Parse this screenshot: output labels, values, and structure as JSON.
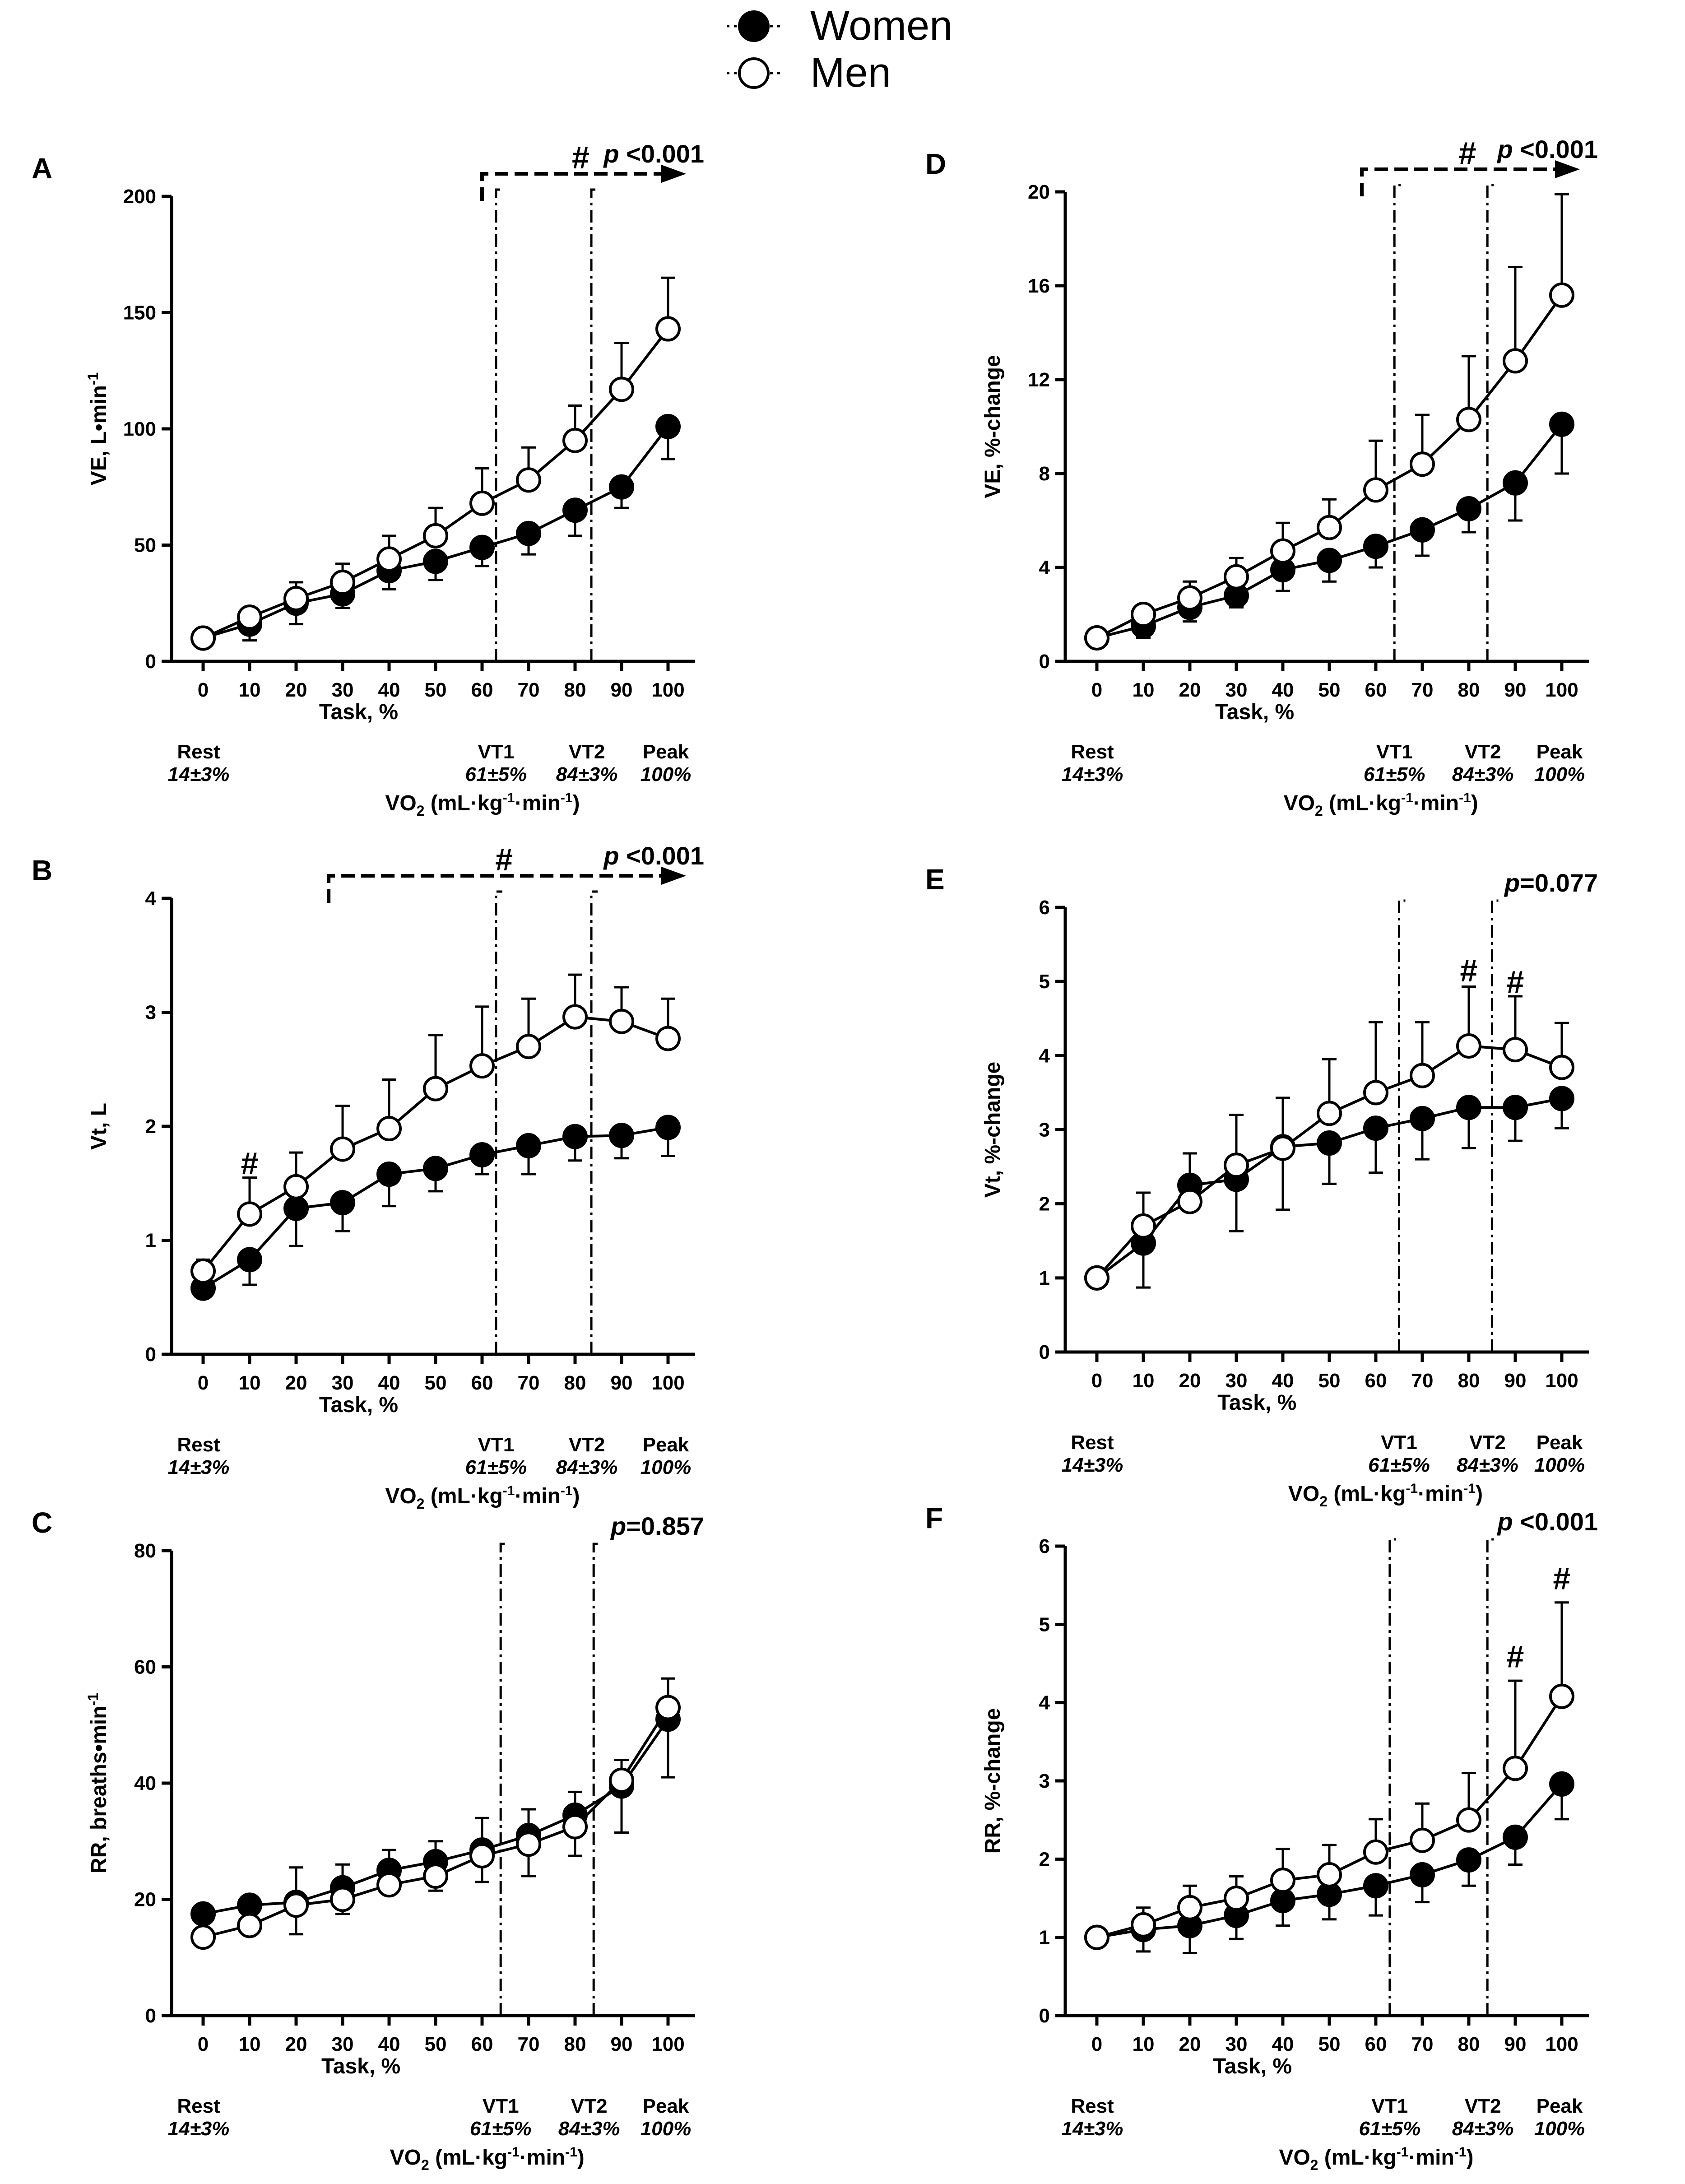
{
  "legend": {
    "women": "Women",
    "men": "Men",
    "women_color": "#000000",
    "men_color": "#ffffff"
  },
  "chart_data": [
    {
      "id": "A",
      "type": "line",
      "panel_label": "A",
      "ylabel": "VE, L•min",
      "ylabel_sup": "-1",
      "xlabel": "Task, %",
      "ylim": [
        0,
        200
      ],
      "yticks": [
        0,
        50,
        100,
        150,
        200
      ],
      "x": [
        0,
        10,
        20,
        30,
        40,
        50,
        60,
        70,
        80,
        90,
        100
      ],
      "series": [
        {
          "name": "Women",
          "values": [
            10,
            16,
            25,
            29,
            39,
            43,
            49,
            55,
            65,
            75,
            101
          ],
          "err": [
            0,
            7,
            9,
            6,
            8,
            8,
            8,
            9,
            11,
            9,
            14
          ]
        },
        {
          "name": "Men",
          "values": [
            10,
            19,
            27,
            34,
            44,
            54,
            68,
            78,
            95,
            117,
            143
          ],
          "err": [
            0,
            3,
            7,
            8,
            10,
            12,
            15,
            14,
            15,
            20,
            22
          ]
        }
      ],
      "thresholds": [
        63,
        83.5
      ],
      "significance": {
        "text": "p <0.001",
        "p": "p",
        "rest": " <0.001",
        "hash": "#",
        "arrow_from": 60
      },
      "hash_marks": [],
      "annotations": {
        "rest": "Rest",
        "rest_val": "14±3%",
        "vt1": "VT1",
        "vt1_val": "61±5%",
        "vt2": "VT2",
        "vt2_val": "84±3%",
        "peak": "Peak",
        "peak_val": "100%",
        "vo2_label": "VO",
        "vo2_sub": "2",
        "vo2_unit": " (mL·kg",
        "vo2_sup1": "-1",
        "vo2_unit2": "·min",
        "vo2_sup2": "-1",
        "vo2_close": ")"
      }
    },
    {
      "id": "B",
      "type": "line",
      "panel_label": "B",
      "ylabel": "Vt, L",
      "ylabel_sup": "",
      "xlabel": "Task, %",
      "ylim": [
        0,
        4
      ],
      "yticks": [
        0,
        1,
        2,
        3,
        4
      ],
      "x": [
        0,
        10,
        20,
        30,
        40,
        50,
        60,
        70,
        80,
        90,
        100
      ],
      "series": [
        {
          "name": "Women",
          "values": [
            0.58,
            0.83,
            1.28,
            1.33,
            1.58,
            1.63,
            1.75,
            1.83,
            1.91,
            1.92,
            1.99
          ],
          "err": [
            0.08,
            0.22,
            0.33,
            0.25,
            0.28,
            0.2,
            0.17,
            0.25,
            0.21,
            0.2,
            0.25
          ]
        },
        {
          "name": "Men",
          "values": [
            0.73,
            1.23,
            1.47,
            1.8,
            1.98,
            2.33,
            2.53,
            2.7,
            2.96,
            2.92,
            2.77
          ],
          "err": [
            0.1,
            0.32,
            0.3,
            0.38,
            0.43,
            0.47,
            0.52,
            0.42,
            0.37,
            0.3,
            0.35
          ]
        }
      ],
      "thresholds": [
        63,
        83.5
      ],
      "significance": {
        "text": "p <0.001",
        "p": "p",
        "rest": " <0.001",
        "hash": "#",
        "arrow_from": 27
      },
      "hash_marks": [
        {
          "x": 10,
          "y": 1.58,
          "text": "#"
        }
      ],
      "annotations": {
        "rest": "Rest",
        "rest_val": "14±3%",
        "vt1": "VT1",
        "vt1_val": "61±5%",
        "vt2": "VT2",
        "vt2_val": "84±3%",
        "peak": "Peak",
        "peak_val": "100%",
        "vo2_label": "VO",
        "vo2_sub": "2",
        "vo2_unit": " (mL·kg",
        "vo2_sup1": "-1",
        "vo2_unit2": "·min",
        "vo2_sup2": "-1",
        "vo2_close": ")"
      }
    },
    {
      "id": "C",
      "type": "line",
      "panel_label": "C",
      "ylabel": "RR, breaths•min",
      "ylabel_sup": "-1",
      "xlabel": "Task, %",
      "ylim": [
        0,
        80
      ],
      "yticks": [
        0,
        20,
        40,
        60,
        80
      ],
      "x": [
        0,
        10,
        20,
        30,
        40,
        50,
        60,
        70,
        80,
        90,
        100
      ],
      "series": [
        {
          "name": "Women",
          "values": [
            17.5,
            19,
            19.5,
            22,
            25,
            26.5,
            28.5,
            31,
            34.5,
            39.5,
            51
          ],
          "err": [
            3,
            5,
            5.5,
            4.5,
            4,
            5,
            5.5,
            7,
            7,
            8,
            10
          ]
        },
        {
          "name": "Men",
          "values": [
            13.5,
            15.5,
            19,
            20,
            22.5,
            24,
            27.5,
            29.5,
            32.5,
            40.5,
            53
          ],
          "err": [
            3.5,
            3.5,
            6.5,
            6,
            6,
            6,
            6.5,
            6,
            6,
            3.5,
            5
          ]
        }
      ],
      "thresholds": [
        64,
        84
      ],
      "significance": {
        "text": "p=0.857",
        "p": "p",
        "rest": "=0.857",
        "hash": "",
        "arrow_from": null
      },
      "hash_marks": [],
      "annotations": {
        "rest": "Rest",
        "rest_val": "14±3%",
        "vt1": "VT1",
        "vt1_val": "61±5%",
        "vt2": "VT2",
        "vt2_val": "84±3%",
        "peak": "Peak",
        "peak_val": "100%",
        "vo2_label": "VO",
        "vo2_sub": "2",
        "vo2_unit": " (mL·kg",
        "vo2_sup1": "-1",
        "vo2_unit2": "·min",
        "vo2_sup2": "-1",
        "vo2_close": ")"
      }
    },
    {
      "id": "D",
      "type": "line",
      "panel_label": "D",
      "ylabel": "VE, %-change",
      "ylabel_sup": "",
      "xlabel": "Task, %",
      "ylim": [
        0,
        20
      ],
      "yticks": [
        0,
        4,
        8,
        12,
        16,
        20
      ],
      "x": [
        0,
        10,
        20,
        30,
        40,
        50,
        60,
        70,
        80,
        90,
        100
      ],
      "series": [
        {
          "name": "Women",
          "values": [
            1,
            1.5,
            2.3,
            2.8,
            3.9,
            4.3,
            4.9,
            5.6,
            6.5,
            7.6,
            10.1
          ],
          "err": [
            0,
            0.5,
            0.6,
            0.5,
            0.9,
            0.9,
            0.9,
            1.1,
            1.0,
            1.6,
            2.1
          ]
        },
        {
          "name": "Men",
          "values": [
            1,
            2.0,
            2.7,
            3.6,
            4.7,
            5.7,
            7.3,
            8.4,
            10.3,
            12.8,
            15.6
          ],
          "err": [
            0,
            0.3,
            0.7,
            0.8,
            1.2,
            1.2,
            2.1,
            2.1,
            2.7,
            4.0,
            4.3
          ]
        }
      ],
      "thresholds": [
        64,
        84
      ],
      "significance": {
        "text": "p <0.001",
        "p": "p",
        "rest": " <0.001",
        "hash": "#",
        "arrow_from": 57
      },
      "hash_marks": [],
      "annotations": {
        "rest": "Rest",
        "rest_val": "14±3%",
        "vt1": "VT1",
        "vt1_val": "61±5%",
        "vt2": "VT2",
        "vt2_val": "84±3%",
        "peak": "Peak",
        "peak_val": "100%",
        "vo2_label": "VO",
        "vo2_sub": "2",
        "vo2_unit": " (mL·kg",
        "vo2_sup1": "-1",
        "vo2_unit2": "·min",
        "vo2_sup2": "-1",
        "vo2_close": ")"
      }
    },
    {
      "id": "E",
      "type": "line",
      "panel_label": "E",
      "ylabel": "Vt, %-change",
      "ylabel_sup": "",
      "xlabel": "Task, %",
      "ylim": [
        0,
        6
      ],
      "yticks": [
        0,
        1,
        2,
        3,
        4,
        5,
        6
      ],
      "x": [
        0,
        10,
        20,
        30,
        40,
        50,
        60,
        70,
        80,
        90,
        100
      ],
      "series": [
        {
          "name": "Women",
          "values": [
            1,
            1.47,
            2.25,
            2.33,
            2.77,
            2.82,
            3.02,
            3.15,
            3.3,
            3.3,
            3.42
          ],
          "err": [
            0,
            0.6,
            0.2,
            0.7,
            0.85,
            0.55,
            0.6,
            0.55,
            0.55,
            0.45,
            0.4
          ]
        },
        {
          "name": "Men",
          "values": [
            1,
            1.7,
            2.03,
            2.52,
            2.75,
            3.22,
            3.5,
            3.73,
            4.13,
            4.08,
            3.84
          ],
          "err": [
            0,
            0.45,
            0.65,
            0.68,
            0.68,
            0.73,
            0.95,
            0.72,
            0.8,
            0.72,
            0.6
          ]
        }
      ],
      "thresholds": [
        65,
        85
      ],
      "significance": {
        "text": "p=0.077",
        "p": "p",
        "rest": "=0.077",
        "hash": "",
        "arrow_from": null
      },
      "hash_marks": [
        {
          "x": 80,
          "y": 5.0,
          "text": "#"
        },
        {
          "x": 90,
          "y": 4.85,
          "text": "#"
        }
      ],
      "annotations": {
        "rest": "Rest",
        "rest_val": "14±3%",
        "vt1": "VT1",
        "vt1_val": "61±5%",
        "vt2": "VT2",
        "vt2_val": "84±3%",
        "peak": "Peak",
        "peak_val": "100%",
        "vo2_label": "VO",
        "vo2_sub": "2",
        "vo2_unit": " (mL·kg",
        "vo2_sup1": "-1",
        "vo2_unit2": "·min",
        "vo2_sup2": "-1",
        "vo2_close": ")"
      }
    },
    {
      "id": "F",
      "type": "line",
      "panel_label": "F",
      "ylabel": "RR, %-change",
      "ylabel_sup": "",
      "xlabel": "Task, %",
      "ylim": [
        0,
        6
      ],
      "yticks": [
        0,
        1,
        2,
        3,
        4,
        5,
        6
      ],
      "x": [
        0,
        10,
        20,
        30,
        40,
        50,
        60,
        70,
        80,
        90,
        100
      ],
      "series": [
        {
          "name": "Women",
          "values": [
            1,
            1.1,
            1.15,
            1.28,
            1.47,
            1.55,
            1.66,
            1.8,
            1.99,
            2.28,
            2.96
          ],
          "err": [
            0,
            0.28,
            0.35,
            0.3,
            0.32,
            0.32,
            0.38,
            0.35,
            0.33,
            0.35,
            0.45
          ]
        },
        {
          "name": "Men",
          "values": [
            1,
            1.16,
            1.38,
            1.5,
            1.73,
            1.8,
            2.09,
            2.24,
            2.5,
            3.16,
            4.08
          ],
          "err": [
            0,
            0.22,
            0.28,
            0.28,
            0.4,
            0.38,
            0.42,
            0.47,
            0.6,
            1.12,
            1.2
          ]
        }
      ],
      "thresholds": [
        63,
        84
      ],
      "significance": {
        "text": "p <0.001",
        "p": "p",
        "rest": " <0.001",
        "hash": "",
        "arrow_from": null
      },
      "hash_marks": [
        {
          "x": 90,
          "y": 4.45,
          "text": "#"
        },
        {
          "x": 100,
          "y": 5.45,
          "text": "#"
        }
      ],
      "annotations": {
        "rest": "Rest",
        "rest_val": "14±3%",
        "vt1": "VT1",
        "vt1_val": "61±5%",
        "vt2": "VT2",
        "vt2_val": "84±3%",
        "peak": "Peak",
        "peak_val": "100%",
        "vo2_label": "VO",
        "vo2_sub": "2",
        "vo2_unit": " (mL·kg",
        "vo2_sup1": "-1",
        "vo2_unit2": "·min",
        "vo2_sup2": "-1",
        "vo2_close": ")"
      }
    }
  ]
}
